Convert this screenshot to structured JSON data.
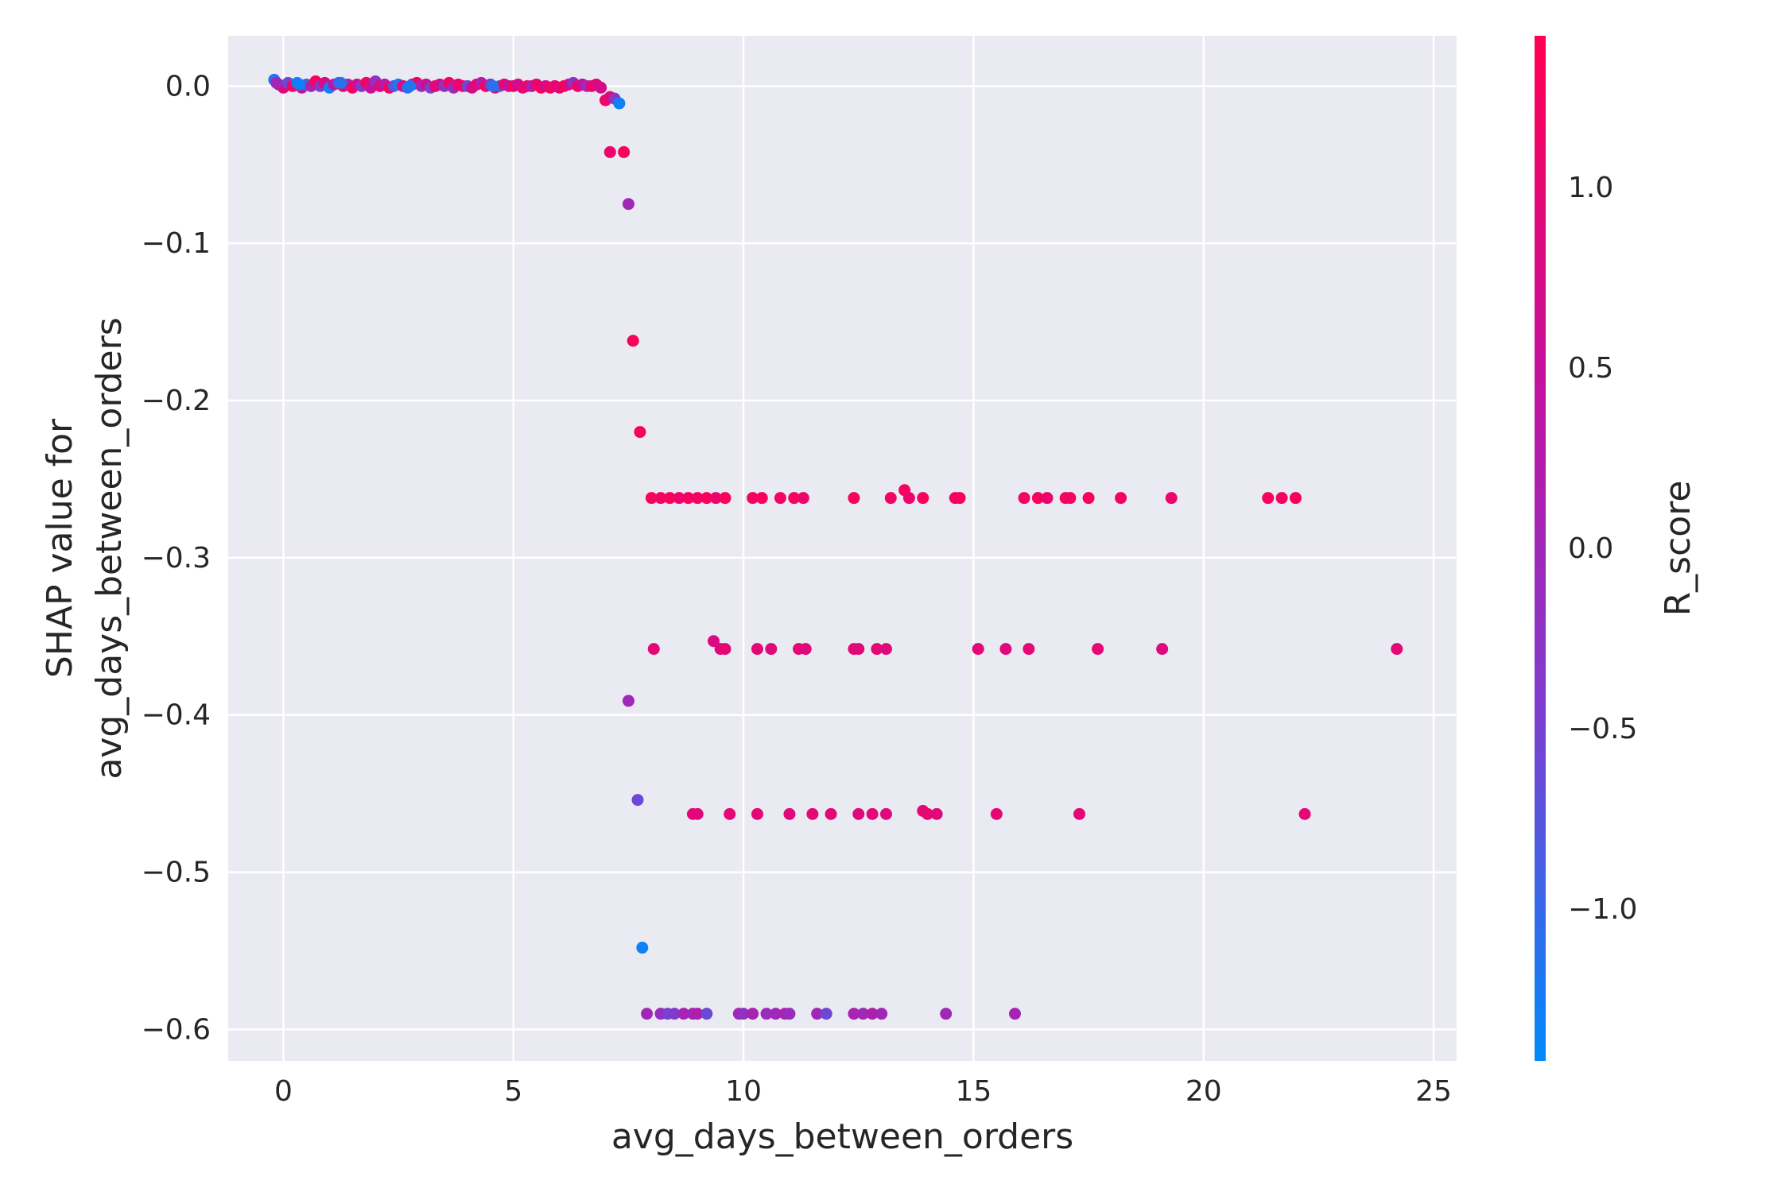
{
  "chart_data": {
    "type": "scatter",
    "title": "",
    "xlabel": "avg_days_between_orders",
    "ylabel_lines": [
      "SHAP value for",
      "avg_days_between_orders"
    ],
    "xlim": [
      -1.2,
      25.5
    ],
    "ylim": [
      -0.62,
      0.032
    ],
    "xticks": [
      0,
      5,
      10,
      15,
      20,
      25
    ],
    "xtick_labels": [
      "0",
      "5",
      "10",
      "15",
      "20",
      "25"
    ],
    "yticks": [
      0.0,
      -0.1,
      -0.2,
      -0.3,
      -0.4,
      -0.5,
      -0.6
    ],
    "ytick_labels": [
      "0.0",
      "−0.1",
      "−0.2",
      "−0.3",
      "−0.4",
      "−0.5",
      "−0.6"
    ],
    "grid": true,
    "background": "#eaeaf2",
    "colorbar": {
      "label": "R_score",
      "range": [
        -1.42,
        1.42
      ],
      "ticks": [
        1.0,
        0.5,
        0.0,
        -0.5,
        -1.0
      ],
      "tick_labels": [
        "1.0",
        "0.5",
        "0.0",
        "−0.5",
        "−1.0"
      ],
      "colormap": [
        "#008afb",
        "#7b3fd0",
        "#c5109e",
        "#ff0052"
      ]
    },
    "points": [
      {
        "x": -0.2,
        "y": 0.004,
        "c": -1.1
      },
      {
        "x": -0.1,
        "y": 0.001,
        "c": 0.3
      },
      {
        "x": 0.0,
        "y": -0.001,
        "c": 0.9
      },
      {
        "x": 0.1,
        "y": 0.002,
        "c": -0.6
      },
      {
        "x": 0.2,
        "y": 0.0,
        "c": 1.2
      },
      {
        "x": 0.3,
        "y": 0.002,
        "c": -1.2
      },
      {
        "x": 0.4,
        "y": -0.001,
        "c": 0.6
      },
      {
        "x": 0.5,
        "y": 0.001,
        "c": -0.9
      },
      {
        "x": 0.6,
        "y": 0.0,
        "c": 0.1
      },
      {
        "x": 0.7,
        "y": 0.003,
        "c": 1.3
      },
      {
        "x": 0.8,
        "y": 0.0,
        "c": -0.3
      },
      {
        "x": 0.9,
        "y": 0.002,
        "c": 0.8
      },
      {
        "x": 1.0,
        "y": -0.001,
        "c": -1.3
      },
      {
        "x": 1.1,
        "y": 0.001,
        "c": 0.4
      },
      {
        "x": 1.2,
        "y": 0.002,
        "c": -0.8
      },
      {
        "x": 1.3,
        "y": 0.0,
        "c": 1.1
      },
      {
        "x": 1.4,
        "y": 0.001,
        "c": 0.0
      },
      {
        "x": 1.5,
        "y": -0.001,
        "c": 1.3
      },
      {
        "x": 1.6,
        "y": 0.001,
        "c": 0.7
      },
      {
        "x": 1.7,
        "y": 0.0,
        "c": -0.4
      },
      {
        "x": 1.8,
        "y": 0.002,
        "c": 1.2
      },
      {
        "x": 1.9,
        "y": -0.001,
        "c": 0.5
      },
      {
        "x": 2.0,
        "y": 0.003,
        "c": -0.2
      },
      {
        "x": 2.1,
        "y": 0.0,
        "c": 1.0
      },
      {
        "x": 2.2,
        "y": 0.001,
        "c": 0.2
      },
      {
        "x": 2.3,
        "y": -0.001,
        "c": 1.3
      },
      {
        "x": 2.4,
        "y": 0.0,
        "c": -0.7
      },
      {
        "x": 2.5,
        "y": 0.001,
        "c": -1.2
      },
      {
        "x": 2.6,
        "y": 0.0,
        "c": 0.9
      },
      {
        "x": 2.7,
        "y": -0.001,
        "c": -1.0
      },
      {
        "x": 2.8,
        "y": 0.001,
        "c": 0.3
      },
      {
        "x": 2.9,
        "y": 0.002,
        "c": 1.2
      },
      {
        "x": 3.0,
        "y": 0.0,
        "c": -0.1
      },
      {
        "x": 3.1,
        "y": 0.001,
        "c": 0.6
      },
      {
        "x": 3.2,
        "y": -0.001,
        "c": -0.5
      },
      {
        "x": 3.3,
        "y": 0.0,
        "c": 1.1
      },
      {
        "x": 3.4,
        "y": 0.001,
        "c": 0.8
      },
      {
        "x": 3.5,
        "y": 0.0,
        "c": -0.3
      },
      {
        "x": 3.6,
        "y": 0.002,
        "c": 1.2
      },
      {
        "x": 3.7,
        "y": -0.001,
        "c": 0.0
      },
      {
        "x": 3.8,
        "y": 0.001,
        "c": 0.9
      },
      {
        "x": 3.9,
        "y": 0.0,
        "c": 1.3
      },
      {
        "x": 4.0,
        "y": 0.0,
        "c": -0.6
      },
      {
        "x": 4.1,
        "y": -0.001,
        "c": 0.7
      },
      {
        "x": 4.2,
        "y": 0.001,
        "c": 1.0
      },
      {
        "x": 4.3,
        "y": 0.002,
        "c": 0.2
      },
      {
        "x": 4.4,
        "y": 0.0,
        "c": 1.2
      },
      {
        "x": 4.5,
        "y": 0.001,
        "c": -0.4
      },
      {
        "x": 4.6,
        "y": -0.001,
        "c": 0.8
      },
      {
        "x": 4.7,
        "y": 0.0,
        "c": -0.9
      },
      {
        "x": 4.8,
        "y": 0.001,
        "c": 1.1
      },
      {
        "x": 4.9,
        "y": 0.0,
        "c": 0.4
      },
      {
        "x": 5.0,
        "y": 0.0,
        "c": 1.3
      },
      {
        "x": 5.1,
        "y": 0.001,
        "c": 0.6
      },
      {
        "x": 5.2,
        "y": -0.001,
        "c": 0.9
      },
      {
        "x": 5.3,
        "y": 0.0,
        "c": 1.2
      },
      {
        "x": 5.4,
        "y": 0.0,
        "c": 0.1
      },
      {
        "x": 5.5,
        "y": 0.001,
        "c": 1.0
      },
      {
        "x": 5.6,
        "y": -0.001,
        "c": 1.3
      },
      {
        "x": 5.7,
        "y": 0.0,
        "c": 0.7
      },
      {
        "x": 5.8,
        "y": -0.001,
        "c": 1.2
      },
      {
        "x": 5.9,
        "y": 0.0,
        "c": 1.1
      },
      {
        "x": 6.0,
        "y": -0.001,
        "c": 0.9
      },
      {
        "x": 6.1,
        "y": 0.0,
        "c": 1.3
      },
      {
        "x": 6.2,
        "y": 0.001,
        "c": 0.8
      },
      {
        "x": 6.3,
        "y": 0.002,
        "c": -0.2
      },
      {
        "x": 6.4,
        "y": 0.0,
        "c": 1.2
      },
      {
        "x": 6.5,
        "y": 0.001,
        "c": 0.5
      },
      {
        "x": 6.6,
        "y": 0.0,
        "c": -0.1
      },
      {
        "x": 6.7,
        "y": 0.0,
        "c": 1.1
      },
      {
        "x": 6.8,
        "y": 0.001,
        "c": 0.9
      },
      {
        "x": 6.9,
        "y": -0.001,
        "c": 0.7
      },
      {
        "x": 7.0,
        "y": -0.009,
        "c": 1.2
      },
      {
        "x": 7.1,
        "y": -0.007,
        "c": 0.9
      },
      {
        "x": 7.2,
        "y": -0.008,
        "c": -0.3
      },
      {
        "x": 7.3,
        "y": -0.011,
        "c": -1.3
      },
      {
        "x": -0.15,
        "y": 0.002,
        "c": 0.0
      },
      {
        "x": 0.35,
        "y": 0.001,
        "c": -1.3
      },
      {
        "x": 1.25,
        "y": 0.002,
        "c": -1.1
      },
      {
        "x": 2.75,
        "y": 0.0,
        "c": -1.2
      },
      {
        "x": 4.55,
        "y": 0.0,
        "c": -1.1
      },
      {
        "x": 7.1,
        "y": -0.042,
        "c": 1.1
      },
      {
        "x": 7.4,
        "y": -0.042,
        "c": 1.3
      },
      {
        "x": 7.5,
        "y": -0.075,
        "c": 0.0
      },
      {
        "x": 7.6,
        "y": -0.162,
        "c": 1.3
      },
      {
        "x": 7.75,
        "y": -0.22,
        "c": 1.3
      },
      {
        "x": 8.0,
        "y": -0.262,
        "c": 1.3
      },
      {
        "x": 8.2,
        "y": -0.262,
        "c": 1.2
      },
      {
        "x": 8.4,
        "y": -0.262,
        "c": 1.3
      },
      {
        "x": 8.6,
        "y": -0.262,
        "c": 1.1
      },
      {
        "x": 8.8,
        "y": -0.262,
        "c": 1.3
      },
      {
        "x": 9.0,
        "y": -0.262,
        "c": 1.2
      },
      {
        "x": 9.2,
        "y": -0.262,
        "c": 1.3
      },
      {
        "x": 9.4,
        "y": -0.262,
        "c": 1.1
      },
      {
        "x": 9.6,
        "y": -0.262,
        "c": 1.3
      },
      {
        "x": 10.2,
        "y": -0.262,
        "c": 1.2
      },
      {
        "x": 10.4,
        "y": -0.262,
        "c": 1.3
      },
      {
        "x": 10.8,
        "y": -0.262,
        "c": 1.2
      },
      {
        "x": 11.1,
        "y": -0.262,
        "c": 1.3
      },
      {
        "x": 11.3,
        "y": -0.262,
        "c": 1.1
      },
      {
        "x": 12.4,
        "y": -0.262,
        "c": 1.3
      },
      {
        "x": 13.2,
        "y": -0.262,
        "c": 1.2
      },
      {
        "x": 13.5,
        "y": -0.257,
        "c": 1.3
      },
      {
        "x": 13.6,
        "y": -0.262,
        "c": 1.1
      },
      {
        "x": 13.9,
        "y": -0.262,
        "c": 1.3
      },
      {
        "x": 14.6,
        "y": -0.262,
        "c": 1.2
      },
      {
        "x": 14.7,
        "y": -0.262,
        "c": 1.3
      },
      {
        "x": 16.1,
        "y": -0.262,
        "c": 1.2
      },
      {
        "x": 16.4,
        "y": -0.262,
        "c": 1.3
      },
      {
        "x": 16.6,
        "y": -0.262,
        "c": 1.1
      },
      {
        "x": 17.0,
        "y": -0.262,
        "c": 1.3
      },
      {
        "x": 17.1,
        "y": -0.262,
        "c": 1.2
      },
      {
        "x": 17.5,
        "y": -0.262,
        "c": 1.3
      },
      {
        "x": 18.2,
        "y": -0.262,
        "c": 1.2
      },
      {
        "x": 19.3,
        "y": -0.262,
        "c": 1.1
      },
      {
        "x": 21.4,
        "y": -0.262,
        "c": 1.3
      },
      {
        "x": 21.7,
        "y": -0.262,
        "c": 1.2
      },
      {
        "x": 22.0,
        "y": -0.262,
        "c": 1.3
      },
      {
        "x": 8.05,
        "y": -0.358,
        "c": 1.0
      },
      {
        "x": 9.35,
        "y": -0.353,
        "c": 0.8
      },
      {
        "x": 9.5,
        "y": -0.358,
        "c": 0.9
      },
      {
        "x": 9.6,
        "y": -0.358,
        "c": 1.0
      },
      {
        "x": 10.3,
        "y": -0.358,
        "c": 1.0
      },
      {
        "x": 10.6,
        "y": -0.358,
        "c": 0.9
      },
      {
        "x": 11.2,
        "y": -0.358,
        "c": 1.0
      },
      {
        "x": 11.35,
        "y": -0.358,
        "c": 0.9
      },
      {
        "x": 12.4,
        "y": -0.358,
        "c": 1.0
      },
      {
        "x": 12.5,
        "y": -0.358,
        "c": 0.9
      },
      {
        "x": 12.9,
        "y": -0.358,
        "c": 1.0
      },
      {
        "x": 13.1,
        "y": -0.358,
        "c": 0.9
      },
      {
        "x": 15.1,
        "y": -0.358,
        "c": 1.0
      },
      {
        "x": 15.7,
        "y": -0.358,
        "c": 0.9
      },
      {
        "x": 16.2,
        "y": -0.358,
        "c": 1.0
      },
      {
        "x": 17.7,
        "y": -0.358,
        "c": 1.0
      },
      {
        "x": 19.1,
        "y": -0.358,
        "c": 0.9
      },
      {
        "x": 24.2,
        "y": -0.358,
        "c": 1.0
      },
      {
        "x": 7.5,
        "y": -0.391,
        "c": 0.0
      },
      {
        "x": 7.7,
        "y": -0.454,
        "c": -0.6
      },
      {
        "x": 8.9,
        "y": -0.463,
        "c": 1.0
      },
      {
        "x": 9.0,
        "y": -0.463,
        "c": 0.9
      },
      {
        "x": 9.7,
        "y": -0.463,
        "c": 1.0
      },
      {
        "x": 10.3,
        "y": -0.463,
        "c": 1.0
      },
      {
        "x": 11.0,
        "y": -0.463,
        "c": 0.9
      },
      {
        "x": 11.5,
        "y": -0.463,
        "c": 1.0
      },
      {
        "x": 11.9,
        "y": -0.463,
        "c": 1.0
      },
      {
        "x": 12.5,
        "y": -0.463,
        "c": 0.9
      },
      {
        "x": 12.8,
        "y": -0.463,
        "c": 1.0
      },
      {
        "x": 13.1,
        "y": -0.463,
        "c": 0.9
      },
      {
        "x": 13.9,
        "y": -0.461,
        "c": 1.0
      },
      {
        "x": 14.0,
        "y": -0.463,
        "c": 1.0
      },
      {
        "x": 14.2,
        "y": -0.463,
        "c": 0.9
      },
      {
        "x": 15.5,
        "y": -0.463,
        "c": 1.0
      },
      {
        "x": 17.3,
        "y": -0.463,
        "c": 1.0
      },
      {
        "x": 22.2,
        "y": -0.463,
        "c": 1.0
      },
      {
        "x": 7.8,
        "y": -0.548,
        "c": -1.3
      },
      {
        "x": 7.9,
        "y": -0.59,
        "c": 0.0
      },
      {
        "x": 8.2,
        "y": -0.59,
        "c": -0.1
      },
      {
        "x": 8.35,
        "y": -0.59,
        "c": -0.5
      },
      {
        "x": 8.5,
        "y": -0.59,
        "c": -0.4
      },
      {
        "x": 8.7,
        "y": -0.59,
        "c": 0.1
      },
      {
        "x": 8.9,
        "y": -0.59,
        "c": 0.0
      },
      {
        "x": 9.0,
        "y": -0.59,
        "c": 0.2
      },
      {
        "x": 9.2,
        "y": -0.59,
        "c": -0.6
      },
      {
        "x": 9.9,
        "y": -0.59,
        "c": 0.0
      },
      {
        "x": 10.0,
        "y": -0.59,
        "c": -0.2
      },
      {
        "x": 10.2,
        "y": -0.59,
        "c": 0.1
      },
      {
        "x": 10.5,
        "y": -0.59,
        "c": -0.1
      },
      {
        "x": 10.7,
        "y": -0.59,
        "c": 0.0
      },
      {
        "x": 10.9,
        "y": -0.59,
        "c": 0.1
      },
      {
        "x": 11.0,
        "y": -0.59,
        "c": -0.1
      },
      {
        "x": 11.6,
        "y": -0.59,
        "c": 0.0
      },
      {
        "x": 11.8,
        "y": -0.59,
        "c": -0.6
      },
      {
        "x": 12.4,
        "y": -0.59,
        "c": 0.1
      },
      {
        "x": 12.6,
        "y": -0.59,
        "c": 0.0
      },
      {
        "x": 12.8,
        "y": -0.59,
        "c": 0.2
      },
      {
        "x": 13.0,
        "y": -0.59,
        "c": 0.0
      },
      {
        "x": 14.4,
        "y": -0.59,
        "c": 0.0
      },
      {
        "x": 15.9,
        "y": -0.59,
        "c": 0.1
      }
    ]
  }
}
